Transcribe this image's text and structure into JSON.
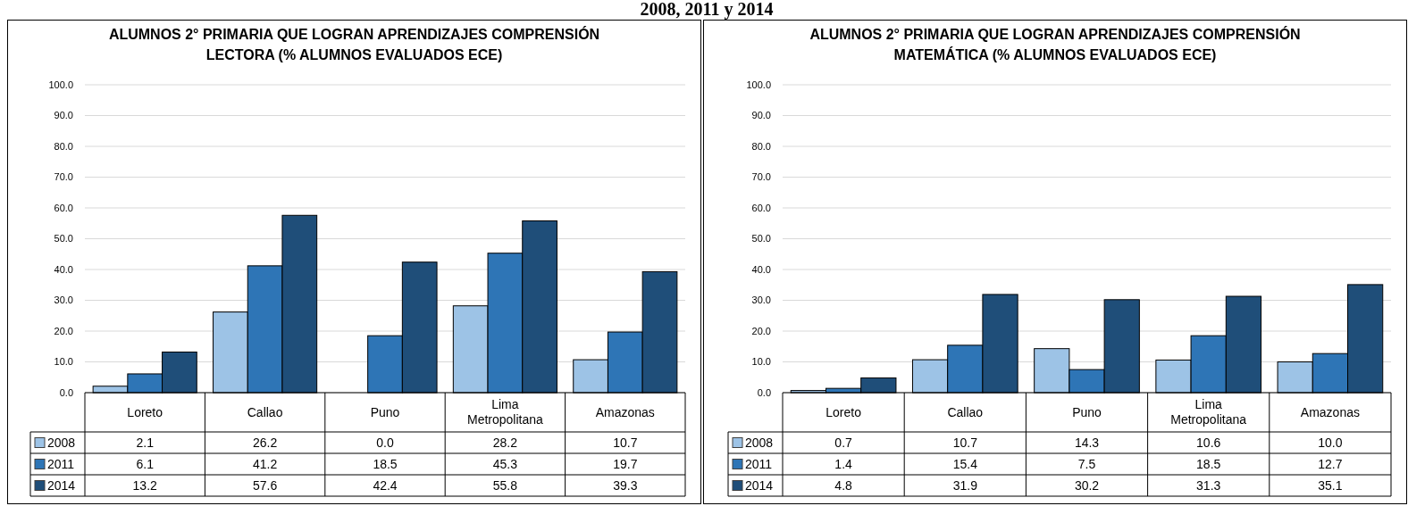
{
  "chart_data": [
    {
      "type": "bar",
      "title": "ALUMNOS 2° PRIMARIA QUE LOGRAN APRENDIZAJES COMPRENSIÓN LECTORA (% ALUMNOS EVALUADOS ECE)",
      "annotations": [
        "2008, 2011 y 2014"
      ],
      "categories": [
        "Loreto",
        "Callao",
        "Puno",
        "Lima Metropolitana",
        "Amazonas"
      ],
      "series": [
        {
          "name": "2008",
          "color": "#9dc3e6",
          "values": [
            2.1,
            26.2,
            0.0,
            28.2,
            10.7
          ],
          "value_labels": [
            "2.1",
            "26.2",
            "0.0",
            "28.2",
            "10.7"
          ]
        },
        {
          "name": "2011",
          "color": "#2e75b6",
          "values": [
            6.1,
            41.2,
            18.5,
            45.3,
            19.7
          ],
          "value_labels": [
            "6.1",
            "41.2",
            "18.5",
            "45.3",
            "19.7"
          ]
        },
        {
          "name": "2014",
          "color": "#1f4e79",
          "values": [
            13.2,
            57.6,
            42.4,
            55.8,
            39.3
          ],
          "value_labels": [
            "13.2",
            "57.6",
            "42.4",
            "55.8",
            "39.3"
          ]
        }
      ],
      "ylim": [
        0,
        100
      ],
      "yticks": [
        {
          "value": 0,
          "label": "0.0"
        },
        {
          "value": 10,
          "label": "10.0"
        },
        {
          "value": 20,
          "label": "20.0"
        },
        {
          "value": 30,
          "label": "30.0"
        },
        {
          "value": 40,
          "label": "40.0"
        },
        {
          "value": 50,
          "label": "50.0"
        },
        {
          "value": 60,
          "label": "60.0"
        },
        {
          "value": 70,
          "label": "70.0"
        },
        {
          "value": 80,
          "label": "80.0"
        },
        {
          "value": 90,
          "label": "90.0"
        },
        {
          "value": 100,
          "label": "100.0"
        }
      ],
      "grid": "y",
      "legend": "bottom"
    },
    {
      "type": "bar",
      "title": "ALUMNOS 2° PRIMARIA QUE LOGRAN APRENDIZAJES COMPRENSIÓN MATEMÁTICA (% ALUMNOS EVALUADOS ECE)",
      "categories": [
        "Loreto",
        "Callao",
        "Puno",
        "Lima Metropolitana",
        "Amazonas"
      ],
      "series": [
        {
          "name": "2008",
          "color": "#9dc3e6",
          "values": [
            0.7,
            10.7,
            14.3,
            10.6,
            10.0
          ],
          "value_labels": [
            "0.7",
            "10.7",
            "14.3",
            "10.6",
            "10.0"
          ]
        },
        {
          "name": "2011",
          "color": "#2e75b6",
          "values": [
            1.4,
            15.4,
            7.5,
            18.5,
            12.7
          ],
          "value_labels": [
            "1.4",
            "15.4",
            "7.5",
            "18.5",
            "12.7"
          ]
        },
        {
          "name": "2014",
          "color": "#1f4e79",
          "values": [
            4.8,
            31.9,
            30.2,
            31.3,
            35.1
          ],
          "value_labels": [
            "4.8",
            "31.9",
            "30.2",
            "31.3",
            "35.1"
          ]
        }
      ],
      "ylim": [
        0,
        100
      ],
      "yticks": [
        {
          "value": 0,
          "label": "0.0"
        },
        {
          "value": 10,
          "label": "10.0"
        },
        {
          "value": 20,
          "label": "20.0"
        },
        {
          "value": 30,
          "label": "30.0"
        },
        {
          "value": 40,
          "label": "40.0"
        },
        {
          "value": 50,
          "label": "50.0"
        },
        {
          "value": 60,
          "label": "60.0"
        },
        {
          "value": 70,
          "label": "70.0"
        },
        {
          "value": 80,
          "label": "80.0"
        },
        {
          "value": 90,
          "label": "90.0"
        },
        {
          "value": 100,
          "label": "100.0"
        }
      ],
      "grid": "y",
      "legend": "bottom"
    }
  ]
}
